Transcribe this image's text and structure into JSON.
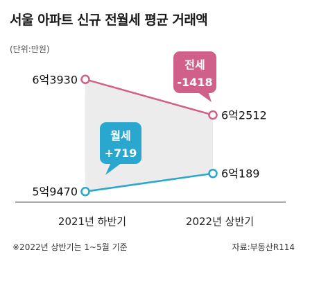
{
  "chart_data": {
    "type": "line",
    "title": "서울 아파트 신규 전월세 평균 거래액",
    "unit_label": "(단위:만원)",
    "categories": [
      "2021년 하반기",
      "2022년 상반기"
    ],
    "series": [
      {
        "name": "전세",
        "values": [
          63930,
          62512
        ],
        "value_labels": [
          "6억3930",
          "6억2512"
        ],
        "change_label": "-1418",
        "color": "#d0608a"
      },
      {
        "name": "월세",
        "values": [
          59470,
          60189
        ],
        "value_labels": [
          "5억9470",
          "6억189"
        ],
        "change_label": "+719",
        "color": "#2aa7cf"
      }
    ],
    "ylim": [
      58800,
      64600
    ],
    "grid": false,
    "note": "※2022년 상반기는 1~5월 기준",
    "source": "자료:부동산R114"
  }
}
